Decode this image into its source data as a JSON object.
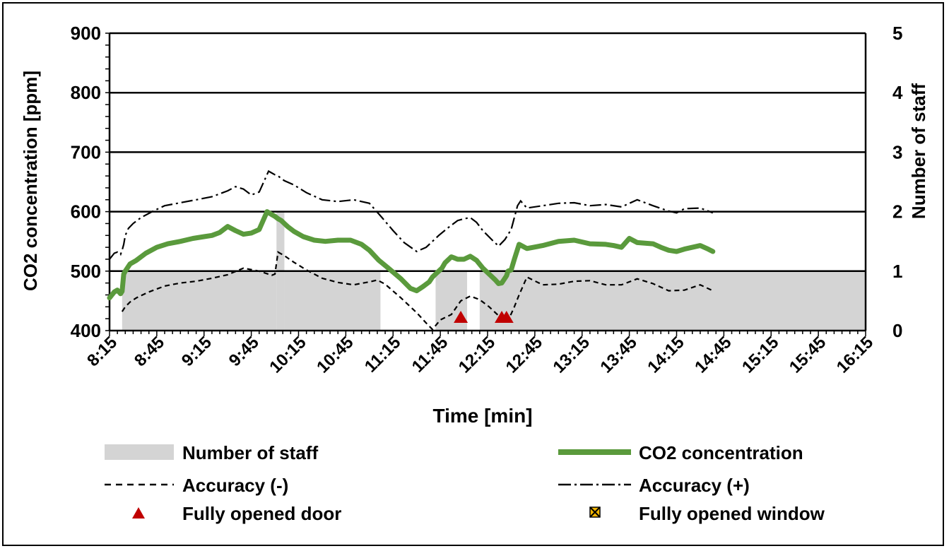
{
  "chart_data": {
    "type": "line",
    "xlabel": "Time [min]",
    "ylabel": "CO2 concentration [ppm]",
    "y2label": "Number of staff",
    "ylim": [
      400,
      900
    ],
    "y2lim": [
      0,
      5
    ],
    "yticks": [
      400,
      500,
      600,
      700,
      800,
      900
    ],
    "y2ticks": [
      0,
      1,
      2,
      3,
      4,
      5
    ],
    "xlim_min": [
      495,
      975
    ],
    "xtick_labels": [
      "8:15",
      "8:45",
      "9:15",
      "9:45",
      "10:15",
      "10:45",
      "11:15",
      "11:45",
      "12:15",
      "12:45",
      "13:15",
      "13:45",
      "14:15",
      "14:45",
      "15:15",
      "15:45",
      "16:15"
    ],
    "grid": true,
    "legend_position": "bottom",
    "legend": {
      "staff": "Number of staff",
      "co2": "CO2 concentration",
      "acc_minus": "Accuracy (-)",
      "acc_plus": "Accuracy (+)",
      "door": "Fully opened door",
      "window": "Fully opened window"
    },
    "colors": {
      "co2": "#5a9a3c",
      "staff": "#d4d4d4",
      "door": "#c00000",
      "window": "#f0b400",
      "line": "#000000"
    },
    "staff_intervals": [
      {
        "start": 503,
        "end": 601,
        "count": 1
      },
      {
        "start": 601,
        "end": 606,
        "count": 2
      },
      {
        "start": 606,
        "end": 667,
        "count": 1
      },
      {
        "start": 702,
        "end": 722,
        "count": 1
      },
      {
        "start": 730,
        "end": 975,
        "count": 1
      }
    ],
    "co2_series": {
      "name": "CO2 concentration",
      "x": [
        495,
        498,
        500,
        502,
        503,
        504,
        505,
        508,
        512,
        518,
        525,
        532,
        540,
        548,
        555,
        560,
        565,
        570,
        575,
        580,
        585,
        590,
        595,
        598,
        600,
        602,
        604,
        606,
        608,
        612,
        618,
        625,
        632,
        640,
        648,
        655,
        660,
        666,
        672,
        680,
        686,
        690,
        694,
        698,
        700,
        702,
        704,
        706,
        708,
        712,
        713,
        716,
        720,
        724,
        728,
        732,
        736,
        740,
        742,
        744,
        747,
        748,
        750,
        752,
        755,
        760,
        770,
        780,
        790,
        800,
        810,
        815,
        820,
        825,
        830,
        840,
        845,
        850,
        855,
        860,
        865,
        870,
        875,
        878
      ],
      "values": [
        455,
        465,
        468,
        462,
        466,
        495,
        500,
        512,
        518,
        530,
        540,
        546,
        550,
        555,
        558,
        560,
        565,
        575,
        568,
        562,
        564,
        570,
        600,
        595,
        592,
        588,
        585,
        580,
        575,
        567,
        558,
        552,
        550,
        552,
        552,
        545,
        535,
        518,
        505,
        487,
        471,
        467,
        474,
        482,
        490,
        495,
        500,
        505,
        514,
        524,
        523,
        520,
        520,
        525,
        518,
        505,
        495,
        485,
        479,
        480,
        492,
        500,
        502,
        520,
        545,
        538,
        543,
        550,
        552,
        546,
        545,
        543,
        540,
        555,
        548,
        546,
        540,
        535,
        533,
        537,
        540,
        543,
        537,
        533
      ]
    },
    "acc_minus_series": {
      "name": "Accuracy (-)",
      "x": [
        503,
        505,
        508,
        512,
        520,
        530,
        540,
        550,
        560,
        570,
        580,
        590,
        598,
        600,
        602,
        606,
        612,
        620,
        630,
        640,
        650,
        660,
        665,
        670,
        680,
        690,
        697,
        700,
        705,
        712,
        718,
        724,
        730,
        736,
        742,
        746,
        748,
        750,
        752,
        755,
        760,
        770,
        780,
        790,
        800,
        810,
        820,
        830,
        840,
        850,
        860,
        870,
        878
      ],
      "values": [
        432,
        440,
        448,
        455,
        465,
        475,
        480,
        483,
        488,
        494,
        505,
        500,
        493,
        495,
        532,
        526,
        515,
        502,
        488,
        481,
        477,
        482,
        485,
        478,
        455,
        430,
        410,
        402,
        418,
        427,
        450,
        458,
        452,
        440,
        425,
        413,
        418,
        428,
        440,
        460,
        490,
        477,
        478,
        483,
        484,
        477,
        477,
        487,
        479,
        467,
        468,
        477,
        467
      ]
    },
    "acc_plus_series": {
      "name": "Accuracy (+)",
      "x": [
        495,
        498,
        500,
        502,
        503,
        504,
        505,
        507,
        510,
        515,
        522,
        530,
        540,
        550,
        560,
        570,
        575,
        580,
        585,
        590,
        596,
        600,
        602,
        606,
        612,
        620,
        630,
        640,
        650,
        660,
        668,
        675,
        682,
        690,
        696,
        700,
        704,
        710,
        716,
        720,
        724,
        728,
        732,
        738,
        742,
        746,
        750,
        752,
        754,
        756,
        760,
        770,
        780,
        790,
        800,
        810,
        820,
        830,
        840,
        850,
        855,
        860,
        870,
        878
      ],
      "values": [
        520,
        530,
        532,
        528,
        535,
        545,
        560,
        572,
        580,
        590,
        600,
        610,
        615,
        620,
        625,
        635,
        642,
        638,
        628,
        633,
        668,
        662,
        660,
        652,
        645,
        632,
        620,
        617,
        620,
        614,
        590,
        568,
        548,
        533,
        540,
        550,
        560,
        573,
        585,
        588,
        590,
        582,
        568,
        552,
        542,
        553,
        570,
        590,
        610,
        618,
        606,
        610,
        614,
        615,
        610,
        612,
        608,
        620,
        610,
        601,
        598,
        605,
        606,
        598
      ]
    },
    "door_events": [
      718,
      744,
      747
    ],
    "window_events": []
  }
}
